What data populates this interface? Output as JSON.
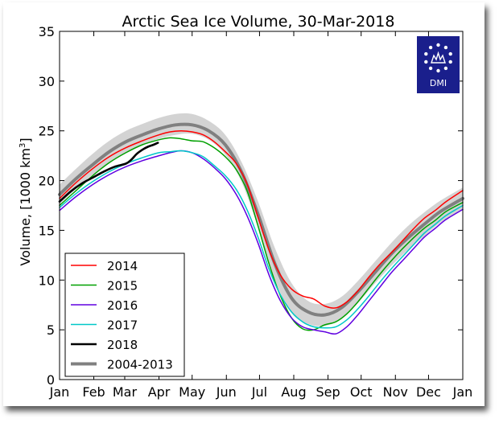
{
  "chart_data": {
    "type": "line",
    "title": "Arctic Sea Ice Volume, 30-Mar-2018",
    "ylabel": "Volume, [1000 km",
    "ylabel_sup": "3",
    "ylabel_close": "]",
    "xlabel": "",
    "ylim": [
      0,
      35
    ],
    "yticks": [
      0,
      5,
      10,
      15,
      20,
      25,
      30,
      35
    ],
    "x_unit": "day of year",
    "xlim": [
      0,
      365
    ],
    "xticks": [
      {
        "label": "Jan",
        "day": 0
      },
      {
        "label": "Feb",
        "day": 31
      },
      {
        "label": "Mar",
        "day": 59
      },
      {
        "label": "Apr",
        "day": 90
      },
      {
        "label": "May",
        "day": 120
      },
      {
        "label": "Jun",
        "day": 151
      },
      {
        "label": "Jul",
        "day": 181
      },
      {
        "label": "Aug",
        "day": 212
      },
      {
        "label": "Sep",
        "day": 243
      },
      {
        "label": "Oct",
        "day": 273
      },
      {
        "label": "Nov",
        "day": 304
      },
      {
        "label": "Dec",
        "day": 334
      },
      {
        "label": "Jan",
        "day": 365
      }
    ],
    "grid": false,
    "legend_position": "lower-left",
    "logo_text": "DMI",
    "band": {
      "x": [
        0,
        15,
        30,
        45,
        60,
        75,
        90,
        105,
        120,
        135,
        150,
        165,
        180,
        195,
        210,
        225,
        240,
        255,
        270,
        285,
        300,
        315,
        330,
        345,
        365
      ],
      "upper": [
        19.6,
        21.2,
        22.7,
        24.0,
        25.0,
        25.7,
        26.3,
        26.7,
        26.7,
        26.0,
        24.6,
        21.8,
        17.8,
        13.2,
        9.7,
        7.9,
        7.6,
        8.3,
        9.9,
        11.8,
        13.7,
        15.4,
        16.8,
        18.0,
        19.3
      ],
      "lower": [
        17.6,
        19.2,
        20.6,
        21.8,
        22.8,
        23.6,
        24.2,
        24.6,
        24.7,
        24.1,
        22.6,
        19.8,
        15.2,
        10.0,
        6.7,
        5.6,
        5.4,
        6.1,
        7.7,
        9.6,
        11.4,
        13.0,
        14.4,
        15.8,
        17.1
      ]
    },
    "series": [
      {
        "name": "2014",
        "color": "#ff0000",
        "x": [
          0,
          15,
          30,
          45,
          60,
          75,
          90,
          100,
          110,
          120,
          130,
          140,
          150,
          160,
          170,
          180,
          190,
          200,
          210,
          220,
          230,
          240,
          250,
          260,
          270,
          280,
          290,
          300,
          310,
          320,
          330,
          340,
          350,
          365
        ],
        "y": [
          18.2,
          19.8,
          21.2,
          22.4,
          23.3,
          24.0,
          24.6,
          24.9,
          25.0,
          24.9,
          24.6,
          23.9,
          22.9,
          21.7,
          19.6,
          16.2,
          12.9,
          10.5,
          9.1,
          8.4,
          8.1,
          7.4,
          7.2,
          7.8,
          8.9,
          10.3,
          11.6,
          12.7,
          13.9,
          15.1,
          16.2,
          17.0,
          17.9,
          19.0
        ]
      },
      {
        "name": "2015",
        "color": "#00a000",
        "x": [
          0,
          15,
          30,
          45,
          60,
          75,
          90,
          100,
          110,
          120,
          130,
          140,
          150,
          160,
          170,
          180,
          190,
          200,
          210,
          220,
          230,
          240,
          250,
          260,
          270,
          280,
          290,
          300,
          310,
          320,
          330,
          340,
          350,
          365
        ],
        "y": [
          17.5,
          19.0,
          20.5,
          21.8,
          22.8,
          23.6,
          24.1,
          24.3,
          24.2,
          24.0,
          23.9,
          23.3,
          22.4,
          21.1,
          18.9,
          15.3,
          11.5,
          8.4,
          6.2,
          5.1,
          5.0,
          5.5,
          5.8,
          6.6,
          7.8,
          9.2,
          10.6,
          11.9,
          13.1,
          14.2,
          15.2,
          16.0,
          16.9,
          17.8
        ]
      },
      {
        "name": "2016",
        "color": "#6000e0",
        "x": [
          0,
          15,
          30,
          45,
          60,
          75,
          90,
          100,
          110,
          120,
          130,
          140,
          150,
          160,
          170,
          180,
          190,
          200,
          210,
          220,
          230,
          240,
          250,
          260,
          270,
          280,
          290,
          300,
          310,
          320,
          330,
          340,
          350,
          365
        ],
        "y": [
          17.0,
          18.4,
          19.6,
          20.6,
          21.4,
          22.0,
          22.5,
          22.8,
          23.0,
          22.8,
          22.2,
          21.3,
          20.2,
          18.6,
          16.4,
          13.6,
          10.4,
          7.9,
          6.2,
          5.3,
          5.0,
          4.8,
          4.6,
          5.3,
          6.5,
          7.9,
          9.3,
          10.7,
          11.9,
          13.1,
          14.3,
          15.2,
          16.1,
          17.1
        ]
      },
      {
        "name": "2017",
        "color": "#00c8c8",
        "x": [
          0,
          15,
          30,
          45,
          60,
          75,
          90,
          100,
          110,
          120,
          130,
          140,
          150,
          160,
          170,
          180,
          190,
          200,
          210,
          220,
          230,
          240,
          250,
          260,
          270,
          280,
          290,
          300,
          310,
          320,
          330,
          340,
          350,
          365
        ],
        "y": [
          17.3,
          18.7,
          19.9,
          20.9,
          21.7,
          22.3,
          22.8,
          22.9,
          23.0,
          22.8,
          22.4,
          21.5,
          20.5,
          19.1,
          17.0,
          14.2,
          11.0,
          8.5,
          6.8,
          5.8,
          5.3,
          5.2,
          5.3,
          6.0,
          7.1,
          8.4,
          9.8,
          11.1,
          12.3,
          13.5,
          14.7,
          15.6,
          16.5,
          17.5
        ]
      },
      {
        "name": "2018",
        "color": "#000000",
        "x": [
          0,
          10,
          20,
          30,
          40,
          50,
          60,
          65,
          70,
          75,
          80,
          85,
          89
        ],
        "y": [
          17.9,
          18.9,
          19.7,
          20.3,
          20.9,
          21.4,
          21.7,
          22.1,
          22.7,
          23.1,
          23.4,
          23.6,
          23.8
        ]
      },
      {
        "name": "2004-2013",
        "color": "#808080",
        "x": [
          0,
          15,
          30,
          45,
          60,
          75,
          90,
          105,
          120,
          135,
          150,
          165,
          180,
          195,
          210,
          225,
          240,
          255,
          270,
          285,
          300,
          315,
          330,
          345,
          365
        ],
        "y": [
          18.6,
          20.2,
          21.6,
          22.9,
          23.9,
          24.6,
          25.2,
          25.6,
          25.6,
          25.0,
          23.6,
          20.8,
          16.5,
          11.6,
          8.2,
          6.8,
          6.5,
          7.2,
          8.8,
          10.7,
          12.6,
          14.2,
          15.6,
          16.9,
          18.2
        ]
      }
    ]
  }
}
